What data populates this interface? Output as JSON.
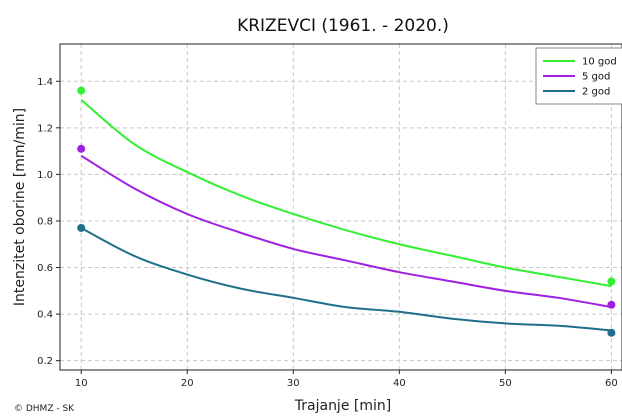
{
  "chart_data": {
    "type": "line",
    "title": "KRIZEVCI (1961. - 2020.)",
    "xlabel": "Trajanje [min]",
    "ylabel": "Intenzitet oborine [mm/min]",
    "xlim": [
      8,
      61
    ],
    "ylim": [
      0.16,
      1.56
    ],
    "xticks": [
      10,
      20,
      30,
      40,
      50,
      60
    ],
    "yticks": [
      0.2,
      0.4,
      0.6,
      0.8,
      1.0,
      1.2,
      1.4
    ],
    "grid": true,
    "legend_position": "top-right",
    "series": [
      {
        "name": "10 god",
        "color": "#33ee33",
        "x": [
          10,
          15,
          20,
          25,
          30,
          35,
          40,
          45,
          50,
          55,
          60
        ],
        "values": [
          1.32,
          1.13,
          1.01,
          0.91,
          0.83,
          0.76,
          0.7,
          0.65,
          0.6,
          0.56,
          0.52
        ],
        "points": [
          {
            "x": 10,
            "y": 1.36
          },
          {
            "x": 60,
            "y": 0.54
          }
        ]
      },
      {
        "name": "5 god",
        "color": "#a020e0",
        "x": [
          10,
          15,
          20,
          25,
          30,
          35,
          40,
          45,
          50,
          55,
          60
        ],
        "values": [
          1.08,
          0.94,
          0.83,
          0.75,
          0.68,
          0.63,
          0.58,
          0.54,
          0.5,
          0.47,
          0.43
        ],
        "points": [
          {
            "x": 10,
            "y": 1.11
          },
          {
            "x": 60,
            "y": 0.44
          }
        ]
      },
      {
        "name": "2 god",
        "color": "#1f6f8b",
        "x": [
          10,
          15,
          20,
          25,
          30,
          35,
          40,
          45,
          50,
          55,
          60
        ],
        "values": [
          0.77,
          0.65,
          0.57,
          0.51,
          0.47,
          0.43,
          0.41,
          0.38,
          0.36,
          0.35,
          0.33
        ],
        "points": [
          {
            "x": 10,
            "y": 0.77
          },
          {
            "x": 60,
            "y": 0.32
          }
        ]
      }
    ]
  },
  "credit": "© DHMZ - SK"
}
